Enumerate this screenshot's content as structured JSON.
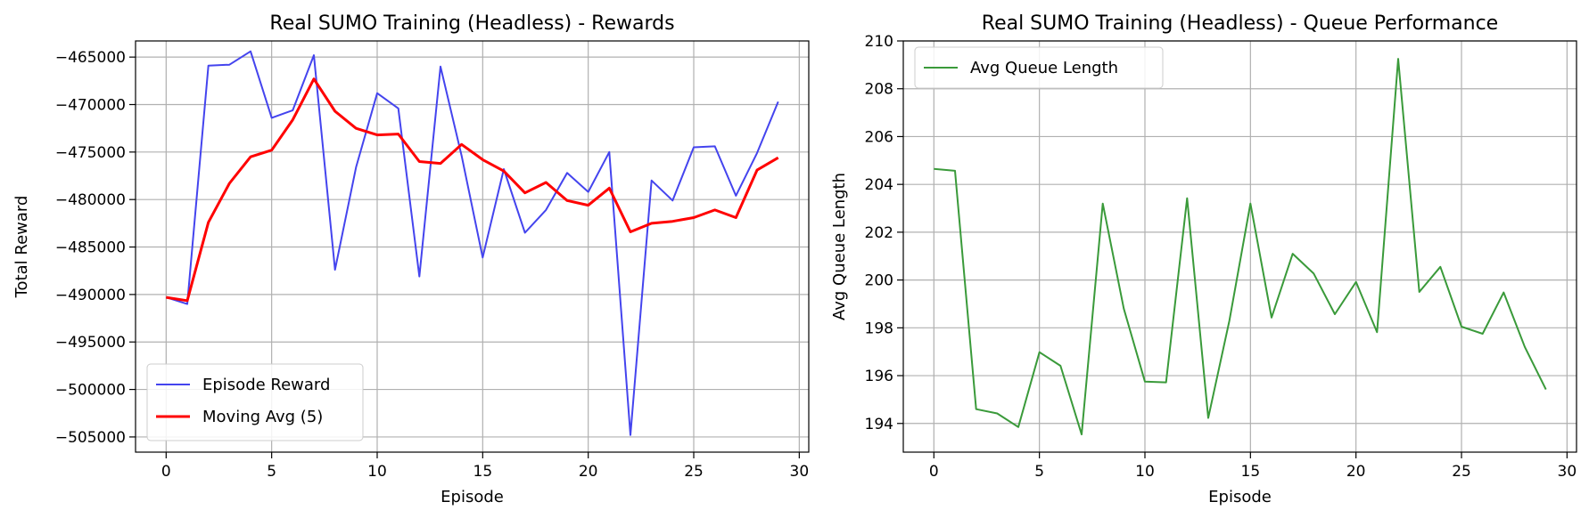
{
  "chart_data": [
    {
      "type": "line",
      "title": "Real SUMO Training (Headless) - Rewards",
      "xlabel": "Episode",
      "ylabel": "Total Reward",
      "xlim": [
        -1.45,
        30.45
      ],
      "ylim": [
        -506600,
        -463300
      ],
      "xticks": [
        0,
        5,
        10,
        15,
        20,
        25,
        30
      ],
      "yticks": [
        -505000,
        -500000,
        -495000,
        -490000,
        -485000,
        -480000,
        -475000,
        -470000,
        -465000
      ],
      "ytick_labels": [
        "−505000",
        "−500000",
        "−495000",
        "−490000",
        "−485000",
        "−480000",
        "−475000",
        "−470000",
        "−465000"
      ],
      "grid": true,
      "legend_position": "lower-left",
      "x": [
        0,
        1,
        2,
        3,
        4,
        5,
        6,
        7,
        8,
        9,
        10,
        11,
        12,
        13,
        14,
        15,
        16,
        17,
        18,
        19,
        20,
        21,
        22,
        23,
        24,
        25,
        26,
        27,
        28,
        29
      ],
      "series": [
        {
          "name": "Episode Reward",
          "color": "#4444ee",
          "width": 2,
          "values": [
            -490300,
            -491000,
            -465900,
            -465800,
            -464400,
            -471400,
            -470600,
            -464800,
            -487400,
            -476600,
            -468800,
            -470400,
            -488100,
            -466000,
            -475400,
            -486100,
            -476800,
            -483500,
            -481100,
            -477200,
            -479200,
            -475000,
            -504800,
            -478000,
            -480100,
            -474500,
            -474400,
            -479600,
            -475100,
            -469700
          ]
        },
        {
          "name": "Moving Avg (5)",
          "color": "#ff0000",
          "width": 3,
          "values": [
            -490300,
            -490650,
            -482400,
            -478300,
            -475500,
            -474800,
            -471600,
            -467300,
            -470700,
            -472500,
            -473200,
            -473100,
            -476000,
            -476200,
            -474200,
            -475800,
            -477000,
            -479300,
            -478200,
            -480100,
            -480600,
            -478800,
            -483400,
            -482500,
            -482300,
            -481900,
            -481100,
            -481900,
            -476900,
            -475600
          ]
        }
      ]
    },
    {
      "type": "line",
      "title": "Real SUMO Training (Headless) - Queue Performance",
      "xlabel": "Episode",
      "ylabel": "Avg Queue Length",
      "xlim": [
        -1.45,
        30.45
      ],
      "ylim": [
        192.8,
        210
      ],
      "xticks": [
        0,
        5,
        10,
        15,
        20,
        25,
        30
      ],
      "yticks": [
        194,
        196,
        198,
        200,
        202,
        204,
        206,
        208,
        210
      ],
      "ytick_labels": [
        "194",
        "196",
        "198",
        "200",
        "202",
        "204",
        "206",
        "208",
        "210"
      ],
      "grid": true,
      "legend_position": "upper-left",
      "x": [
        0,
        1,
        2,
        3,
        4,
        5,
        6,
        7,
        8,
        9,
        10,
        11,
        12,
        13,
        14,
        15,
        16,
        17,
        18,
        19,
        20,
        21,
        22,
        23,
        24,
        25,
        26,
        27,
        28,
        29
      ],
      "series": [
        {
          "name": "Avg Queue Length",
          "color": "#3a9a3a",
          "width": 2,
          "values": [
            204.65,
            204.57,
            194.6,
            194.42,
            193.85,
            196.98,
            196.41,
            193.54,
            203.2,
            198.8,
            195.75,
            195.72,
            203.42,
            194.23,
            198.3,
            203.2,
            198.43,
            201.1,
            200.27,
            198.57,
            199.92,
            197.82,
            209.25,
            199.5,
            200.55,
            198.05,
            197.75,
            199.48,
            197.2,
            195.42
          ]
        }
      ]
    }
  ]
}
